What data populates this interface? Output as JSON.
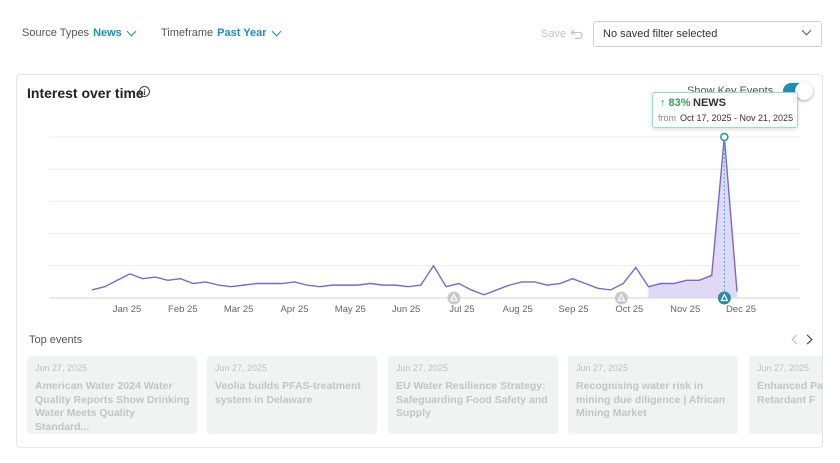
{
  "filters": {
    "source_types": {
      "label": "Source Types",
      "value": "News"
    },
    "timeframe": {
      "label": "Timeframe",
      "value": "Past Year"
    }
  },
  "toolbar": {
    "save_label": "Save",
    "undo_icon": "undo-icon"
  },
  "saved_filter": {
    "value": "No saved filter selected"
  },
  "card": {
    "title": "Interest over time",
    "info_icon": "info-icon",
    "key_events_label": "Show Key Events",
    "key_events_on": true
  },
  "tooltip": {
    "change": "↑ 83%",
    "series": "NEWS",
    "from_label": "from",
    "range": "Oct 17, 2025 - Nov 21, 2025"
  },
  "chart_data": {
    "type": "line",
    "x_tick_labels": [
      "Jan 25",
      "Feb 25",
      "Mar 25",
      "Apr 25",
      "May 25",
      "Jun 25",
      "Jul 25",
      "Aug 25",
      "Sep 25",
      "Oct 25",
      "Nov 25",
      "Dec 25"
    ],
    "series": [
      {
        "values": [
          0.05,
          0.07,
          0.11,
          0.15,
          0.12,
          0.13,
          0.11,
          0.12,
          0.09,
          0.1,
          0.08,
          0.07,
          0.08,
          0.09,
          0.09,
          0.09,
          0.1,
          0.08,
          0.07,
          0.08,
          0.08,
          0.08,
          0.09,
          0.08,
          0.08,
          0.07,
          0.08,
          0.2,
          0.07,
          0.09,
          0.05,
          0.02,
          0.05,
          0.08,
          0.1,
          0.1,
          0.08,
          0.09,
          0.12,
          0.09,
          0.06,
          0.05,
          0.09,
          0.19,
          0.07,
          0.09,
          0.09,
          0.11,
          0.11,
          0.14,
          1.0,
          0.04
        ],
        "color": "#7b68c9"
      }
    ],
    "highlight_range": {
      "from": "Oct 17, 2025",
      "to": "Nov 21, 2025",
      "fill": "#d9d2f5"
    },
    "key_event_markers": [
      "Jul 25",
      "Oct 25",
      "Dec 25"
    ],
    "grid": true,
    "ylim": [
      0,
      1.0
    ]
  },
  "top_events": {
    "label": "Top events",
    "items": [
      {
        "date": "Jun 27, 2025",
        "title": "American Water 2024 Water Quality Reports Show Drinking Water Meets Quality Standard..."
      },
      {
        "date": "Jun 27, 2025",
        "title": "Veolia builds PFAS-treatment system in Delaware"
      },
      {
        "date": "Jun 27, 2025",
        "title": "EU Water Resilience Strategy: Safeguarding Food Safety and Supply"
      },
      {
        "date": "Jun 27, 2025",
        "title": "Recognising water risk in mining due diligence | African Mining Market"
      },
      {
        "date": "Jun 27, 2025",
        "title": "Enhanced Packaging Retardant F"
      }
    ]
  }
}
